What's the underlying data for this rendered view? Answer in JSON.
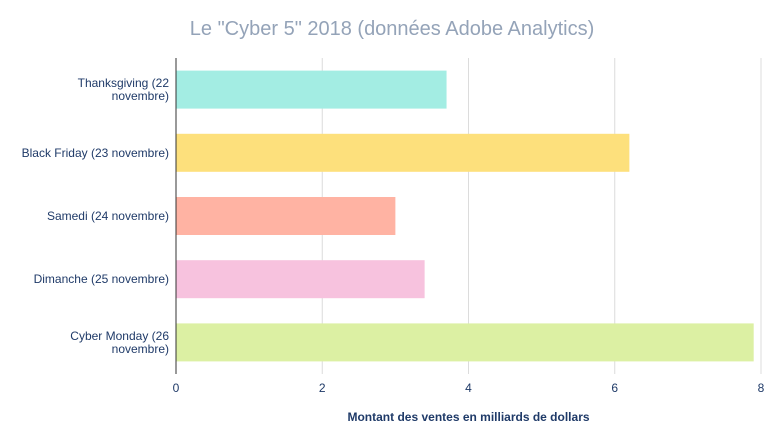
{
  "chart_data": {
    "type": "bar",
    "orientation": "horizontal",
    "title": "Le \"Cyber 5\" 2018 (données Adobe Analytics)",
    "xlabel": "Montant des ventes en milliards de dollars",
    "ylabel": "",
    "xlim": [
      0,
      8
    ],
    "xticks": [
      0,
      2,
      4,
      6,
      8
    ],
    "grid": true,
    "legend": "none",
    "categories": [
      [
        "Thanksgiving (22",
        "novembre)"
      ],
      [
        "Black Friday (23 novembre)"
      ],
      [
        "Samedi (24 novembre)"
      ],
      [
        "Dimanche (25 novembre)"
      ],
      [
        "Cyber Monday (26",
        "novembre)"
      ]
    ],
    "values": [
      3.7,
      6.2,
      3.0,
      3.4,
      7.9
    ],
    "colors": [
      "#a3ede3",
      "#fde07c",
      "#ffb3a3",
      "#f7c2de",
      "#dcf0a3"
    ]
  }
}
